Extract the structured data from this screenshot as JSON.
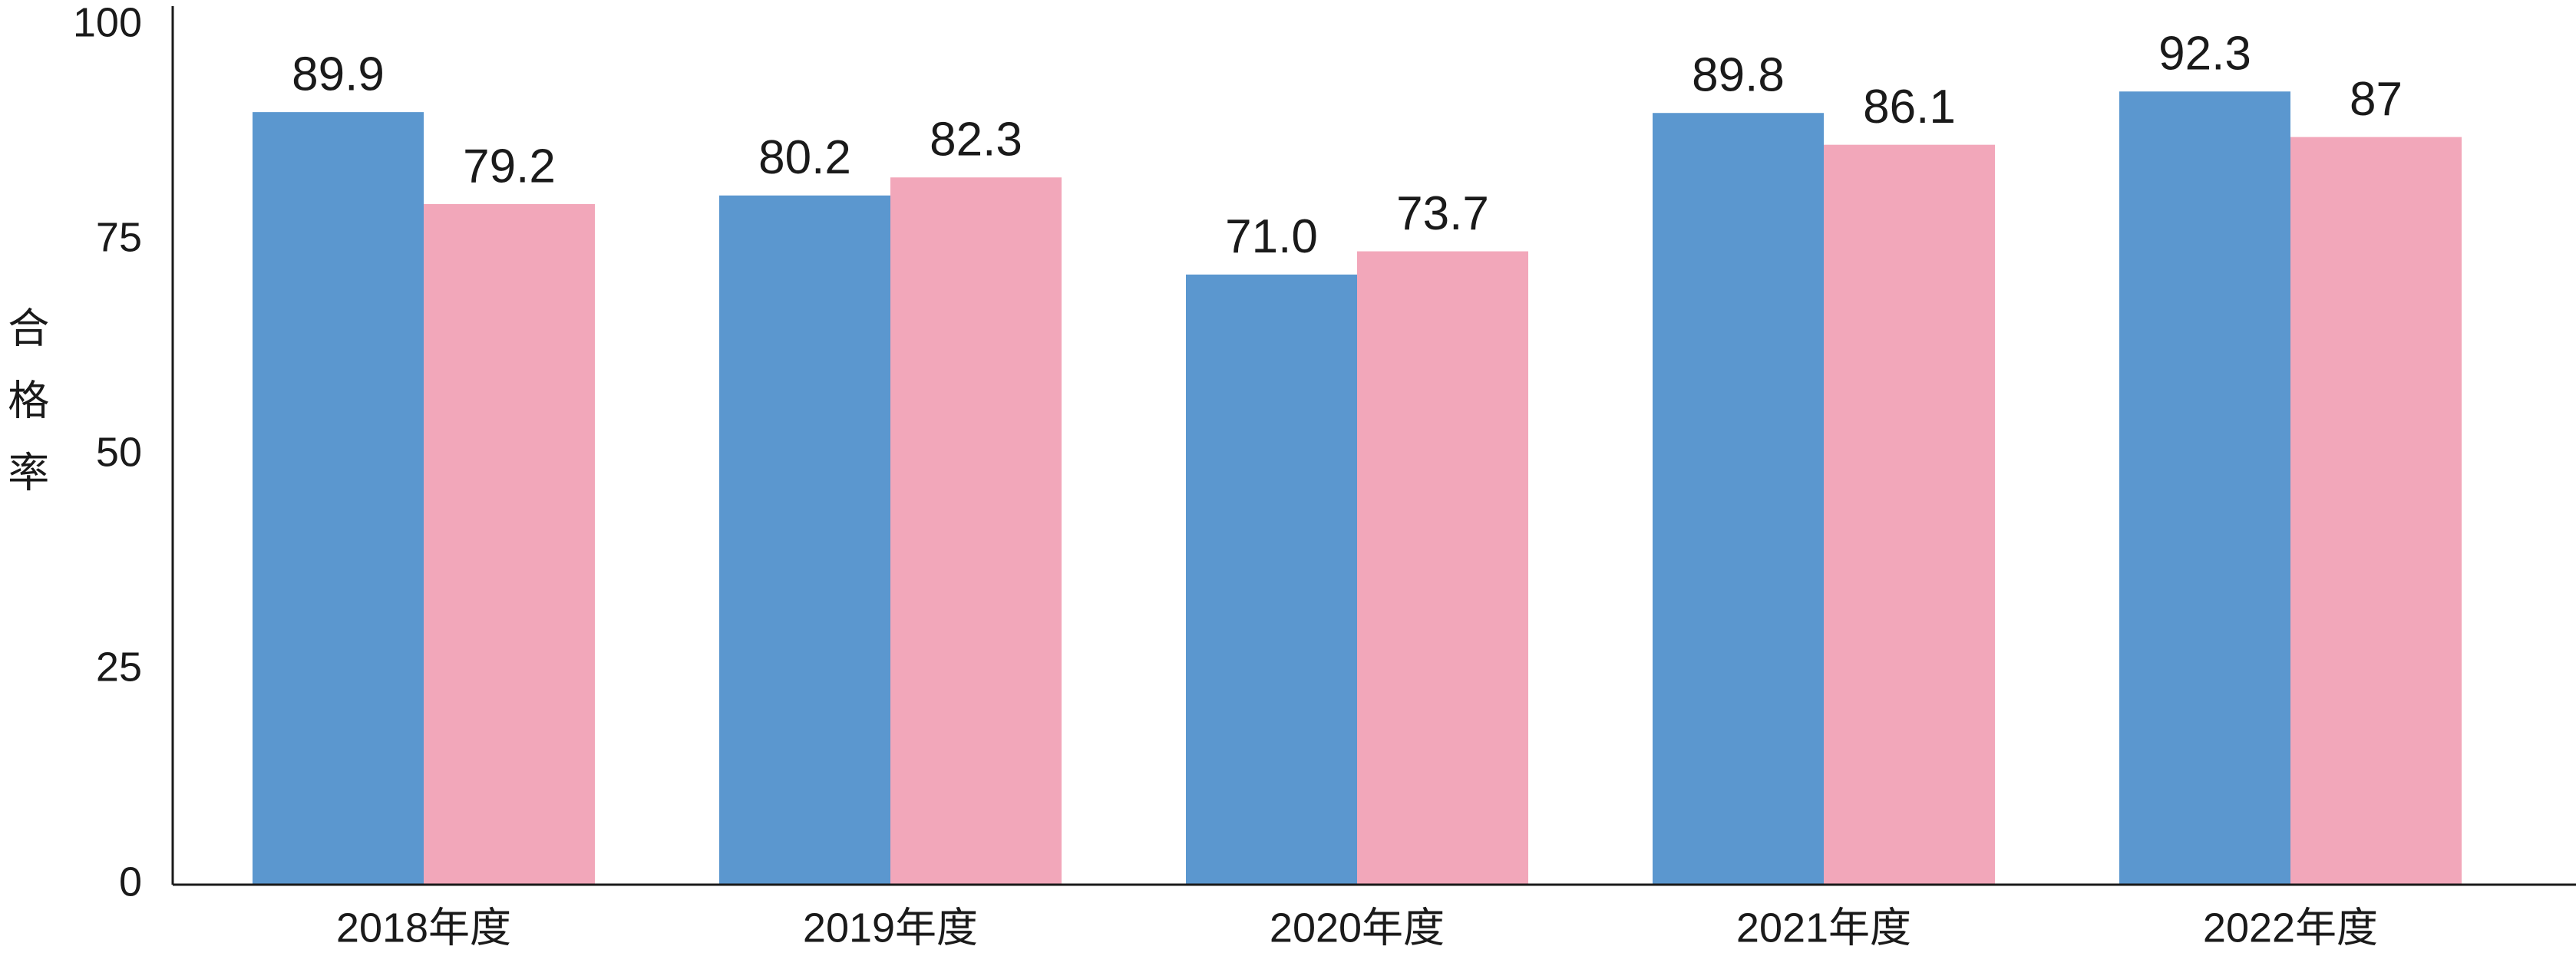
{
  "chart_data": {
    "type": "bar",
    "y_label": "合格率",
    "categories": [
      "2018年度",
      "2019年度",
      "2020年度",
      "2021年度",
      "2022年度"
    ],
    "series": [
      {
        "color": "#5b97cf",
        "values": [
          89.9,
          80.2,
          71.0,
          89.8,
          92.3
        ],
        "value_labels": [
          "89.9",
          "80.2",
          "71.0",
          "89.8",
          "92.3"
        ]
      },
      {
        "color": "#f2a7ba",
        "values": [
          79.2,
          82.3,
          73.7,
          86.1,
          87
        ],
        "value_labels": [
          "79.2",
          "82.3",
          "73.7",
          "86.1",
          "87"
        ]
      }
    ],
    "ylim": [
      0,
      100
    ],
    "yticks": [
      0,
      25,
      50,
      75,
      100
    ],
    "grid": false
  }
}
